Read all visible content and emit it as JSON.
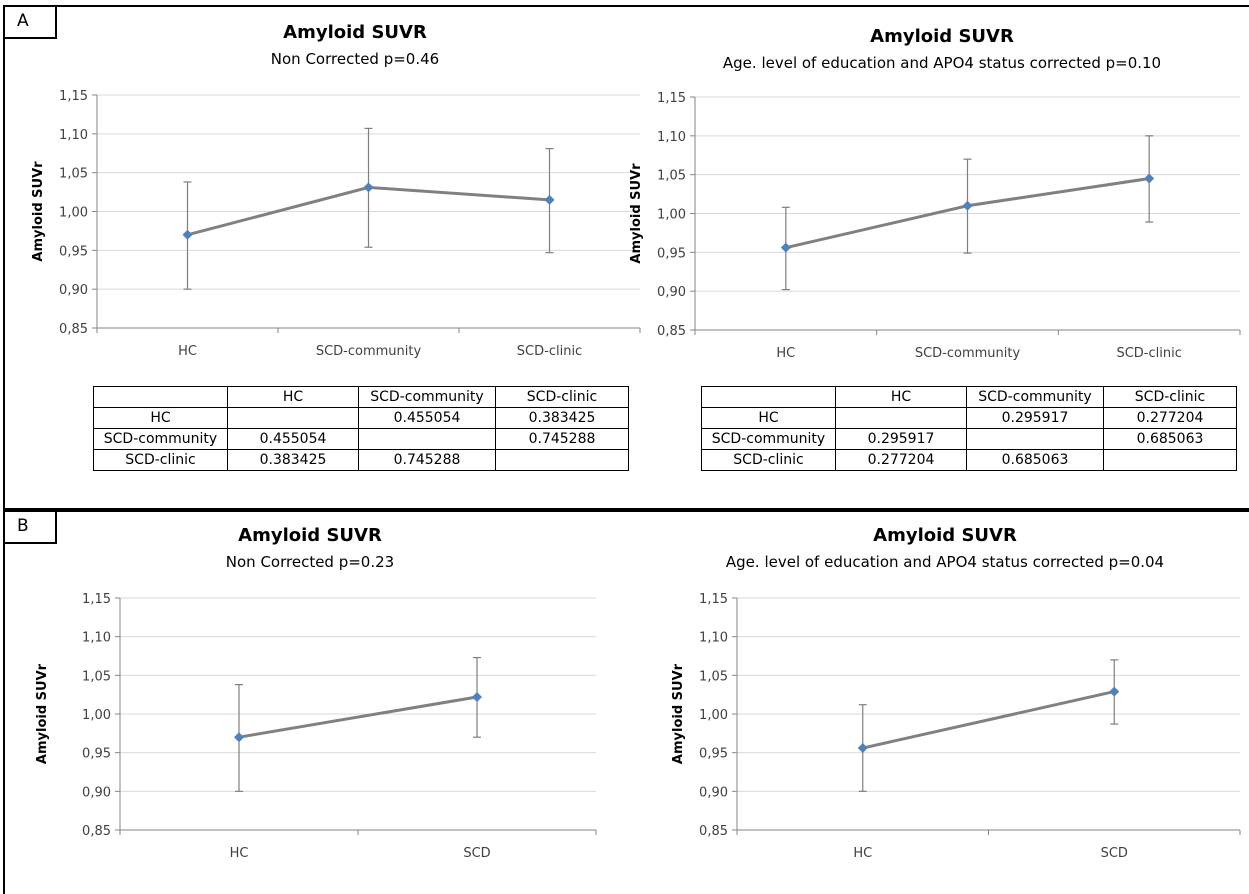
{
  "panels": [
    {
      "label": "A"
    },
    {
      "label": "B"
    }
  ],
  "chart_data": [
    {
      "type": "line",
      "title": "Amyloid SUVR",
      "subtitle": "Non Corrected p=0.46",
      "ylabel": "Amyloid SUVr",
      "xlabel": "",
      "categories": [
        "HC",
        "SCD-community",
        "SCD-clinic"
      ],
      "values": [
        0.97,
        1.031,
        1.015
      ],
      "error_low": [
        0.9,
        0.954,
        0.947
      ],
      "error_high": [
        1.038,
        1.107,
        1.081
      ],
      "ylim": [
        0.85,
        1.15
      ],
      "yticks": [
        "0,85",
        "0,90",
        "0,95",
        "1,00",
        "1,05",
        "1,10",
        "1,15"
      ],
      "grid": true,
      "line_color": "#808080",
      "marker_color": "#4F81BD"
    },
    {
      "type": "line",
      "title": "Amyloid SUVR",
      "subtitle": "Age. level of education and APO4 status corrected p=0.10",
      "ylabel": "Amyloid SUVr",
      "xlabel": "",
      "categories": [
        "HC",
        "SCD-community",
        "SCD-clinic"
      ],
      "values": [
        0.956,
        1.01,
        1.045
      ],
      "error_low": [
        0.902,
        0.949,
        0.989
      ],
      "error_high": [
        1.008,
        1.07,
        1.1
      ],
      "ylim": [
        0.85,
        1.15
      ],
      "yticks": [
        "0,85",
        "0,90",
        "0,95",
        "1,00",
        "1,05",
        "1,10",
        "1,15"
      ],
      "grid": true,
      "line_color": "#808080",
      "marker_color": "#4F81BD"
    },
    {
      "type": "line",
      "title": "Amyloid SUVR",
      "subtitle": "Non Corrected p=0.23",
      "ylabel": "Amyloid SUVr",
      "xlabel": "",
      "categories": [
        "HC",
        "SCD"
      ],
      "values": [
        0.97,
        1.022
      ],
      "error_low": [
        0.9,
        0.97
      ],
      "error_high": [
        1.038,
        1.073
      ],
      "ylim": [
        0.85,
        1.15
      ],
      "yticks": [
        "0,85",
        "0,90",
        "0,95",
        "1,00",
        "1,05",
        "1,10",
        "1,15"
      ],
      "grid": true,
      "line_color": "#808080",
      "marker_color": "#4F81BD"
    },
    {
      "type": "line",
      "title": "Amyloid SUVR",
      "subtitle": "Age. level of education and APO4 status corrected p=0.04",
      "ylabel": "Amyloid SUVr",
      "xlabel": "",
      "categories": [
        "HC",
        "SCD"
      ],
      "values": [
        0.956,
        1.029
      ],
      "error_low": [
        0.9,
        0.987
      ],
      "error_high": [
        1.012,
        1.07
      ],
      "ylim": [
        0.85,
        1.15
      ],
      "yticks": [
        "0,85",
        "0,90",
        "0,95",
        "1,00",
        "1,05",
        "1,10",
        "1,15"
      ],
      "grid": true,
      "line_color": "#808080",
      "marker_color": "#4F81BD"
    }
  ],
  "tables": [
    {
      "header": [
        "",
        "HC",
        "SCD-community",
        "SCD-clinic"
      ],
      "rows": [
        [
          "HC",
          "",
          "0.455054",
          "0.383425"
        ],
        [
          "SCD-community",
          "0.455054",
          "",
          "0.745288"
        ],
        [
          "SCD-clinic",
          "0.383425",
          "0.745288",
          ""
        ]
      ]
    },
    {
      "header": [
        "",
        "HC",
        "SCD-community",
        "SCD-clinic"
      ],
      "rows": [
        [
          "HC",
          "",
          "0.295917",
          "0.277204"
        ],
        [
          "SCD-community",
          "0.295917",
          "",
          "0.685063"
        ],
        [
          "SCD-clinic",
          "0.277204",
          "0.685063",
          ""
        ]
      ]
    }
  ]
}
